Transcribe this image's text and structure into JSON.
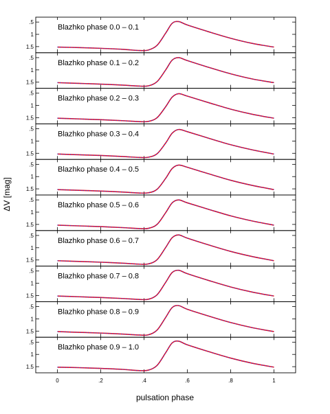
{
  "chart_data": {
    "type": "line",
    "xlabel": "pulsation phase",
    "ylabel": "ΔV [mag]",
    "xlim": [
      -0.1,
      1.1
    ],
    "ylim": [
      0.3,
      1.75
    ],
    "x_ticks": [
      0,
      0.2,
      0.4,
      0.6,
      0.8,
      1.0
    ],
    "x_tick_labels": [
      "0",
      ".2",
      ".4",
      ".6",
      ".8",
      "1"
    ],
    "y_ticks": [
      0.5,
      1.0,
      1.5
    ],
    "y_tick_labels": [
      ".5",
      "1",
      "1.5"
    ],
    "y_inverted": true,
    "series_colors": {
      "observed": "#e8141e",
      "fit": "#2a2ad8"
    },
    "phase_points": [
      0,
      0.1,
      0.2,
      0.3,
      0.38,
      0.42,
      0.46,
      0.5,
      0.53,
      0.56,
      0.6,
      0.7,
      0.8,
      0.9,
      1.0
    ],
    "panels": [
      {
        "label": "Blazhko phase 0.0 – 0.1",
        "delta_v": [
          1.52,
          1.54,
          1.57,
          1.61,
          1.66,
          1.64,
          1.45,
          0.95,
          0.55,
          0.48,
          0.62,
          0.9,
          1.16,
          1.37,
          1.52
        ]
      },
      {
        "label": "Blazhko phase 0.1 – 0.2",
        "delta_v": [
          1.52,
          1.55,
          1.58,
          1.62,
          1.66,
          1.65,
          1.48,
          1.0,
          0.6,
          0.5,
          0.62,
          0.9,
          1.16,
          1.37,
          1.52
        ]
      },
      {
        "label": "Blazhko phase 0.2 – 0.3",
        "delta_v": [
          1.52,
          1.55,
          1.58,
          1.62,
          1.66,
          1.65,
          1.5,
          1.05,
          0.66,
          0.52,
          0.62,
          0.89,
          1.15,
          1.36,
          1.52
        ]
      },
      {
        "label": "Blazhko phase 0.3 – 0.4",
        "delta_v": [
          1.53,
          1.56,
          1.59,
          1.63,
          1.67,
          1.66,
          1.52,
          1.08,
          0.68,
          0.53,
          0.62,
          0.89,
          1.15,
          1.36,
          1.53
        ]
      },
      {
        "label": "Blazhko phase 0.4 – 0.5",
        "delta_v": [
          1.53,
          1.56,
          1.59,
          1.63,
          1.67,
          1.66,
          1.52,
          1.07,
          0.67,
          0.53,
          0.62,
          0.89,
          1.15,
          1.36,
          1.53
        ]
      },
      {
        "label": "Blazhko phase 0.5 – 0.6",
        "delta_v": [
          1.53,
          1.56,
          1.59,
          1.63,
          1.67,
          1.66,
          1.5,
          1.02,
          0.62,
          0.5,
          0.62,
          0.89,
          1.15,
          1.36,
          1.53
        ]
      },
      {
        "label": "Blazhko phase 0.6 – 0.7",
        "delta_v": [
          1.53,
          1.56,
          1.59,
          1.63,
          1.67,
          1.66,
          1.49,
          0.99,
          0.59,
          0.48,
          0.61,
          0.89,
          1.15,
          1.36,
          1.53
        ]
      },
      {
        "label": "Blazhko phase 0.7 – 0.8",
        "delta_v": [
          1.52,
          1.55,
          1.58,
          1.62,
          1.66,
          1.65,
          1.47,
          0.96,
          0.56,
          0.47,
          0.61,
          0.89,
          1.15,
          1.36,
          1.52
        ]
      },
      {
        "label": "Blazhko phase 0.8 – 0.9",
        "delta_v": [
          1.52,
          1.55,
          1.58,
          1.62,
          1.66,
          1.65,
          1.46,
          0.94,
          0.54,
          0.46,
          0.61,
          0.89,
          1.15,
          1.36,
          1.52
        ]
      },
      {
        "label": "Blazhko phase 0.9 – 1.0",
        "delta_v": [
          1.52,
          1.54,
          1.57,
          1.61,
          1.66,
          1.64,
          1.45,
          0.93,
          0.53,
          0.46,
          0.61,
          0.89,
          1.15,
          1.36,
          1.52
        ]
      }
    ]
  }
}
